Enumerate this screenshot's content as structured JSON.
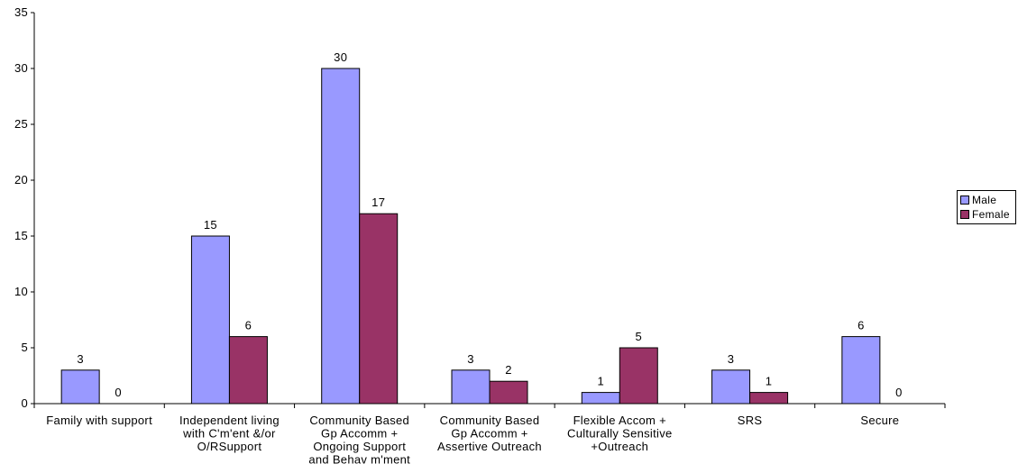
{
  "chart_data": {
    "type": "bar",
    "categories": [
      [
        "Family with support"
      ],
      [
        "Independent living",
        "with C'm'ent &/or",
        "O/RSupport"
      ],
      [
        "Community Based",
        "Gp Accomm +",
        "Ongoing Support",
        "and Behav m'ment"
      ],
      [
        "Community Based",
        "Gp Accomm +",
        "Assertive Outreach"
      ],
      [
        "Flexible Accom +",
        "Culturally Sensitive",
        "+Outreach"
      ],
      [
        "SRS"
      ],
      [
        "Secure"
      ]
    ],
    "series": [
      {
        "name": "Male",
        "color": "#9999ff",
        "values": [
          3,
          15,
          30,
          3,
          1,
          3,
          6
        ]
      },
      {
        "name": "Female",
        "color": "#993366",
        "values": [
          0,
          6,
          17,
          2,
          5,
          1,
          0
        ]
      }
    ],
    "ylim": [
      0,
      35
    ],
    "yticks": [
      0,
      5,
      10,
      15,
      20,
      25,
      30,
      35
    ],
    "grid": false,
    "legend": "right"
  }
}
